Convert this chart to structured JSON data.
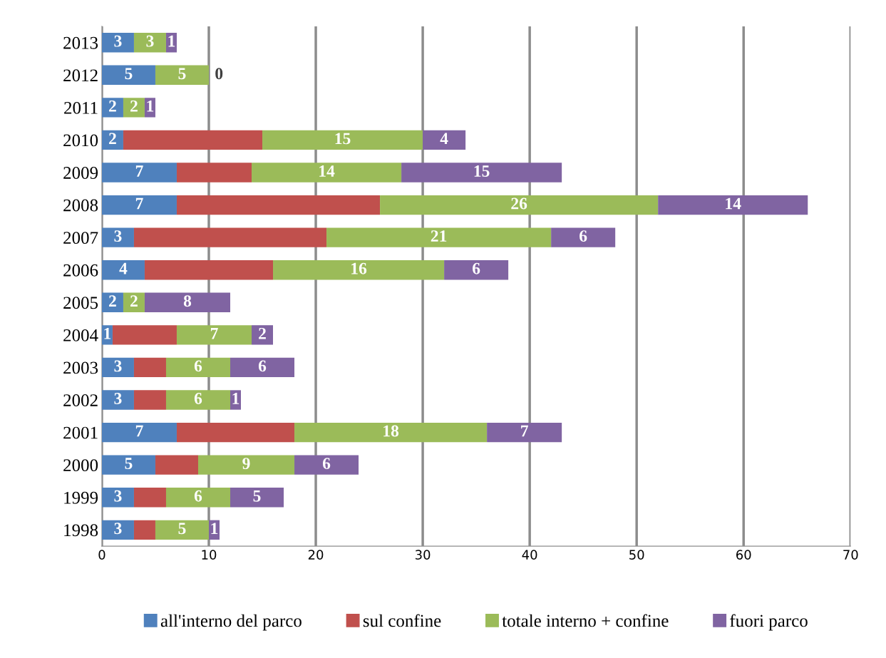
{
  "chart_data": {
    "type": "bar",
    "orientation": "horizontal",
    "stacked": true,
    "categories": [
      "2013",
      "2012",
      "2011",
      "2010",
      "2009",
      "2008",
      "2007",
      "2006",
      "2005",
      "2004",
      "2003",
      "2002",
      "2001",
      "2000",
      "1999",
      "1998"
    ],
    "series": [
      {
        "name": "all'interno del parco",
        "color": "#4f81bd",
        "values": [
          3,
          5,
          2,
          2,
          7,
          7,
          3,
          4,
          2,
          1,
          3,
          3,
          7,
          5,
          3,
          3
        ],
        "value_labels": [
          "3",
          "5",
          "2",
          "2",
          "7",
          "7",
          "3",
          "4",
          "2",
          "1",
          "3",
          "3",
          "7",
          "5",
          "3",
          "3"
        ]
      },
      {
        "name": "sul confine",
        "color": "#c0504d",
        "values": [
          0,
          0,
          0,
          13,
          7,
          19,
          18,
          12,
          0,
          6,
          3,
          3,
          11,
          4,
          3,
          2
        ],
        "value_labels": [
          null,
          null,
          null,
          null,
          null,
          null,
          null,
          null,
          null,
          null,
          null,
          null,
          null,
          null,
          null,
          null
        ]
      },
      {
        "name": "totale interno + confine",
        "color": "#9bbb59",
        "values": [
          3,
          5,
          2,
          15,
          14,
          26,
          21,
          16,
          2,
          7,
          6,
          6,
          18,
          9,
          6,
          5
        ],
        "value_labels": [
          "3",
          "5",
          "2",
          "15",
          "14",
          "26",
          "21",
          "16",
          "2",
          "7",
          "6",
          "6",
          "18",
          "9",
          "6",
          "5"
        ]
      },
      {
        "name": "fuori parco",
        "color": "#8064a2",
        "values": [
          1,
          0,
          1,
          4,
          15,
          14,
          6,
          6,
          8,
          2,
          6,
          1,
          7,
          6,
          5,
          1
        ],
        "value_labels": [
          "1",
          "0",
          "1",
          "4",
          "15",
          "14",
          "6",
          "6",
          "8",
          "2",
          "6",
          "1",
          "7",
          "6",
          "5",
          "1"
        ]
      }
    ],
    "xlim": [
      0,
      70
    ],
    "xticks": [
      0,
      10,
      20,
      30,
      40,
      50,
      60,
      70
    ],
    "grid": "x",
    "legend": "bottom"
  }
}
